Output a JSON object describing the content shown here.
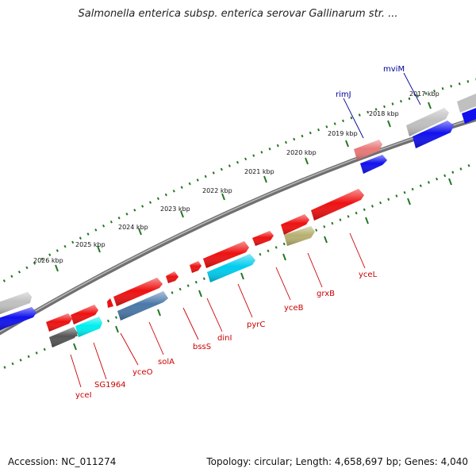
{
  "title": "Salmonella enterica subsp. enterica serovar Gallinarum str. ...",
  "footer": {
    "accession": "Accession: NC_011274",
    "topology": "Topology: circular; Length: 4,658,697 bp; Genes: 4,040"
  },
  "colors": {
    "red_gene": "#ee1111",
    "blue_gene": "#1111ee",
    "grey_gene": "#c0c0c0",
    "cyan_gene": "#00ccee",
    "steel_gene": "#4a78a8",
    "olive_gene": "#b6b070",
    "dark_gene": "#555555",
    "pink_gene": "#e87878",
    "backbone": "#808080",
    "tick": "#227722",
    "label_red": "#cc0000",
    "label_blue": "#000099"
  },
  "kbp_labels": [
    "2017 kbp",
    "2018 kbp",
    "2019 kbp",
    "2020 kbp",
    "2021 kbp",
    "2022 kbp",
    "2023 kbp",
    "2024 kbp",
    "2025 kbp",
    "2026 kbp"
  ],
  "gene_labels_outer": [
    "mviM",
    "rimJ"
  ],
  "gene_labels_inner": [
    "yceI",
    "SG1964",
    "yceO",
    "solA",
    "bssS",
    "dinI",
    "pyrC",
    "yceB",
    "grxB",
    "yceL"
  ]
}
